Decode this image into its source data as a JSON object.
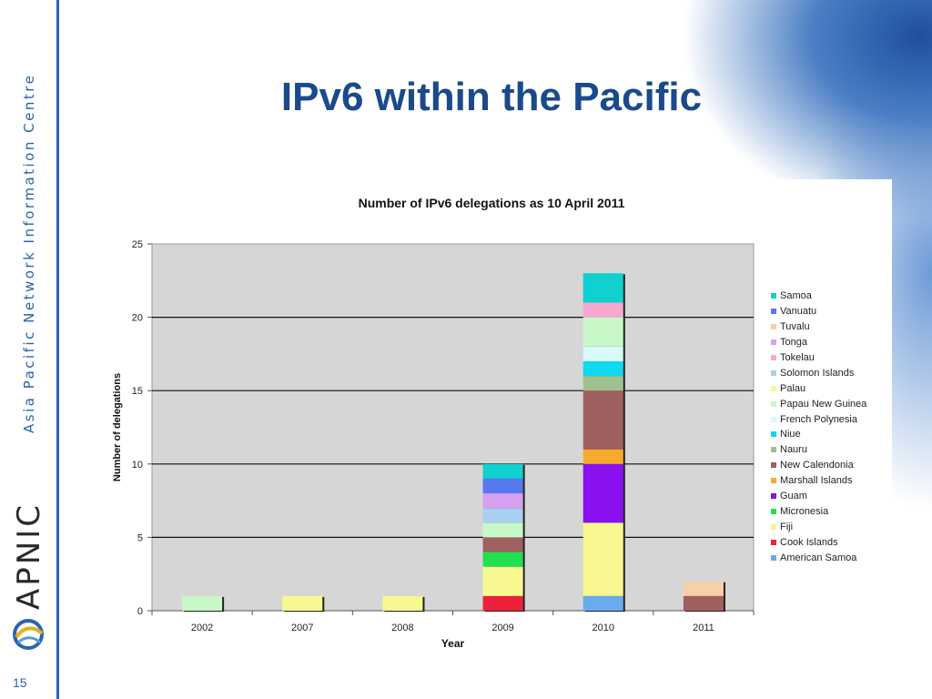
{
  "slide": {
    "title": "IPv6 within the Pacific",
    "side_text": "Asia Pacific Network Information Centre",
    "brand": "APNIC",
    "page_number": "15"
  },
  "chart_data": {
    "type": "bar",
    "stacked": true,
    "title": "Number of IPv6 delegations as 10 April 2011",
    "xlabel": "Year",
    "ylabel": "Number of delegations",
    "ylim": [
      0,
      25
    ],
    "yticks": [
      0,
      5,
      10,
      15,
      20,
      25
    ],
    "grid": true,
    "legend_position": "right",
    "categories": [
      "2002",
      "2007",
      "2008",
      "2009",
      "2010",
      "2011"
    ],
    "series": [
      {
        "name": "American Samoa",
        "color": "#6aaaf0",
        "values": [
          0,
          0,
          0,
          0,
          1,
          0
        ]
      },
      {
        "name": "Cook Islands",
        "color": "#f0203a",
        "values": [
          0,
          0,
          0,
          1,
          0,
          0
        ]
      },
      {
        "name": "Fiji",
        "color": "#f8f890",
        "values": [
          0,
          1,
          1,
          2,
          5,
          0
        ]
      },
      {
        "name": "Micronesia",
        "color": "#20e050",
        "values": [
          0,
          0,
          0,
          1,
          0,
          0
        ]
      },
      {
        "name": "Guam",
        "color": "#8a10f0",
        "values": [
          0,
          0,
          0,
          0,
          4,
          0
        ]
      },
      {
        "name": "Marshall Islands",
        "color": "#f8aa30",
        "values": [
          0,
          0,
          0,
          0,
          1,
          0
        ]
      },
      {
        "name": "New Calendonia",
        "color": "#a06060",
        "values": [
          0,
          0,
          0,
          1,
          4,
          1
        ]
      },
      {
        "name": "Nauru",
        "color": "#a0c090",
        "values": [
          0,
          0,
          0,
          0,
          1,
          0
        ]
      },
      {
        "name": "Niue",
        "color": "#10d8f0",
        "values": [
          0,
          0,
          0,
          0,
          1,
          0
        ]
      },
      {
        "name": "French Polynesia",
        "color": "#d8faf8",
        "values": [
          0,
          0,
          0,
          0,
          1,
          0
        ]
      },
      {
        "name": "Papau New Guinea",
        "color": "#c8f8c8",
        "values": [
          1,
          0,
          0,
          1,
          2,
          0
        ]
      },
      {
        "name": "Palau",
        "color": "#f8f898",
        "values": [
          0,
          0,
          0,
          0,
          0,
          0
        ]
      },
      {
        "name": "Solomon Islands",
        "color": "#a8d0f0",
        "values": [
          0,
          0,
          0,
          1,
          0,
          0
        ]
      },
      {
        "name": "Tokelau",
        "color": "#f8a8d0",
        "values": [
          0,
          0,
          0,
          0,
          1,
          0
        ]
      },
      {
        "name": "Tonga",
        "color": "#d8a0f0",
        "values": [
          0,
          0,
          0,
          1,
          0,
          0
        ]
      },
      {
        "name": "Tuvalu",
        "color": "#f8d0a8",
        "values": [
          0,
          0,
          0,
          0,
          0,
          1
        ]
      },
      {
        "name": "Vanuatu",
        "color": "#5878f0",
        "values": [
          0,
          0,
          0,
          1,
          0,
          0
        ]
      },
      {
        "name": "Samoa",
        "color": "#10d0d0",
        "values": [
          0,
          0,
          0,
          1,
          2,
          0
        ]
      }
    ]
  }
}
